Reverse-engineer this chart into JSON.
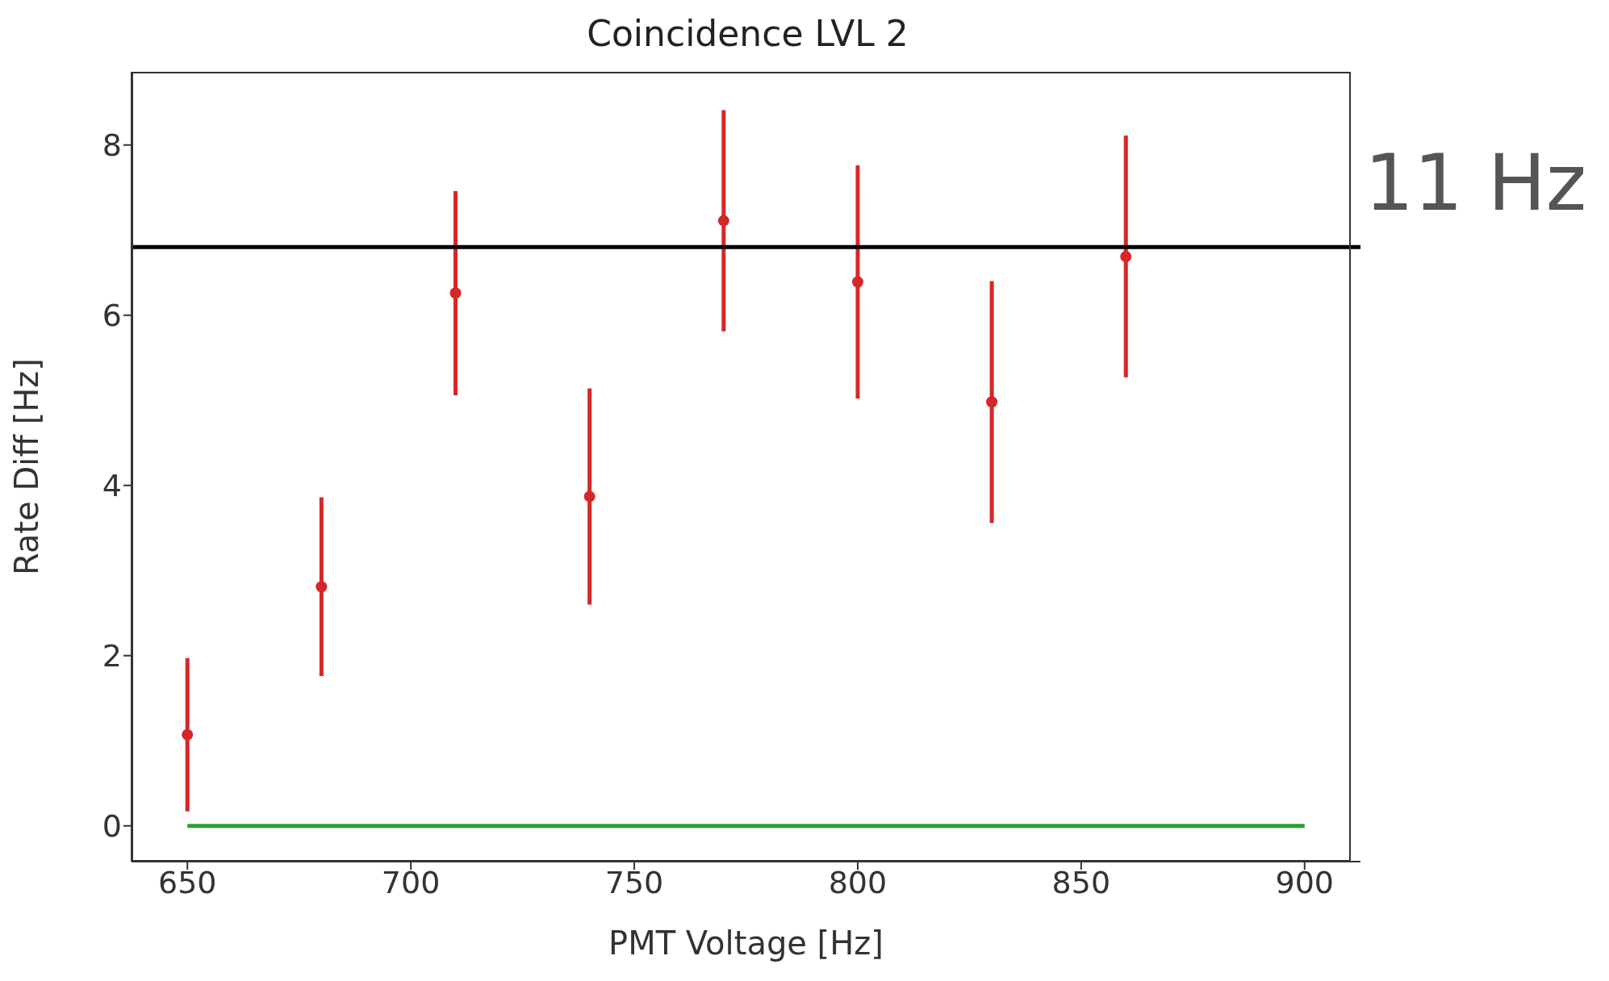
{
  "chart_data": {
    "type": "scatter",
    "title": "Coincidence LVL 2",
    "xlabel": "PMT Voltage [Hz]",
    "ylabel": "Rate Diff [Hz]",
    "x": [
      650,
      680,
      710,
      740,
      770,
      800,
      830,
      860
    ],
    "series": [
      {
        "color": "#d62728",
        "marker": "circle",
        "values": [
          1.07,
          2.81,
          6.26,
          3.87,
          7.11,
          6.39,
          4.98,
          6.69
        ],
        "errors": [
          0.9,
          1.05,
          1.2,
          1.27,
          1.3,
          1.37,
          1.42,
          1.42
        ]
      },
      {
        "type": "line",
        "color": "#2ca02c",
        "x": [
          650,
          900
        ],
        "values": [
          0,
          0
        ]
      }
    ],
    "xlim": [
      637.5,
      912.5
    ],
    "xticks": [
      650,
      700,
      750,
      800,
      850,
      900
    ],
    "ylim": [
      -0.42,
      8.86
    ],
    "yticks": [
      0,
      2,
      4,
      6,
      8
    ],
    "ref_lines": [
      {
        "axis": "y",
        "value": 6.8,
        "label": "11 Hz",
        "color": "#000000"
      }
    ],
    "grid": false,
    "legend": false
  }
}
